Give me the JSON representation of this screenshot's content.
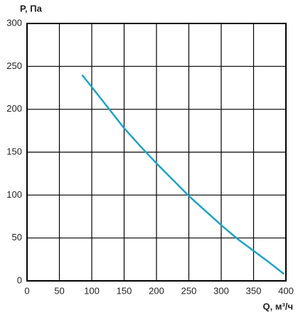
{
  "chart_data": {
    "type": "line",
    "ylabel": "P, Па",
    "xlabel": "Q, м³/ч",
    "x": [
      85,
      100,
      125,
      150,
      175,
      200,
      225,
      250,
      275,
      300,
      325,
      350,
      375,
      397
    ],
    "series": [
      {
        "color": "#1ba3c9",
        "values": [
          240,
          226,
          202,
          178,
          157,
          137,
          118,
          99,
          82,
          65,
          49,
          35,
          21,
          8
        ]
      }
    ],
    "xlim": [
      0,
      400
    ],
    "xticks": [
      0,
      50,
      100,
      150,
      200,
      250,
      300,
      350,
      400
    ],
    "ylim": [
      0,
      300
    ],
    "yticks": [
      0,
      50,
      100,
      150,
      200,
      250,
      300
    ],
    "grid": true
  }
}
